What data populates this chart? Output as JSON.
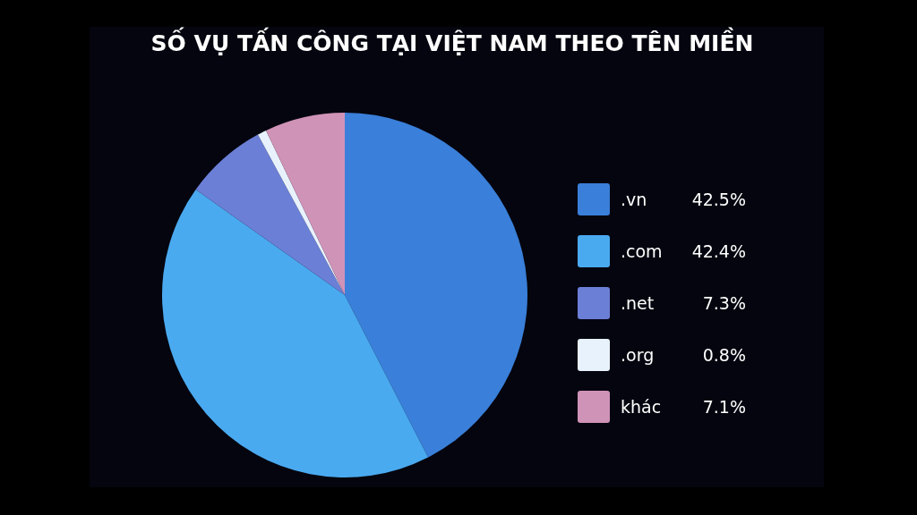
{
  "chart_data": {
    "type": "pie",
    "title": "SỐ VỤ TẤN CÔNG TẠI VIỆT NAM THEO TÊN MIỀN",
    "categories": [
      ".vn",
      ".com",
      ".net",
      ".org",
      "khác"
    ],
    "values": [
      42.5,
      42.4,
      7.3,
      0.8,
      7.1
    ],
    "value_labels": [
      "42.5%",
      "42.4%",
      "7.3%",
      "0.8%",
      "7.1%"
    ],
    "colors": [
      "#3a7fd9",
      "#4aaaf0",
      "#6b7fd6",
      "#e8f2fc",
      "#d093b8"
    ],
    "legend": "right"
  }
}
